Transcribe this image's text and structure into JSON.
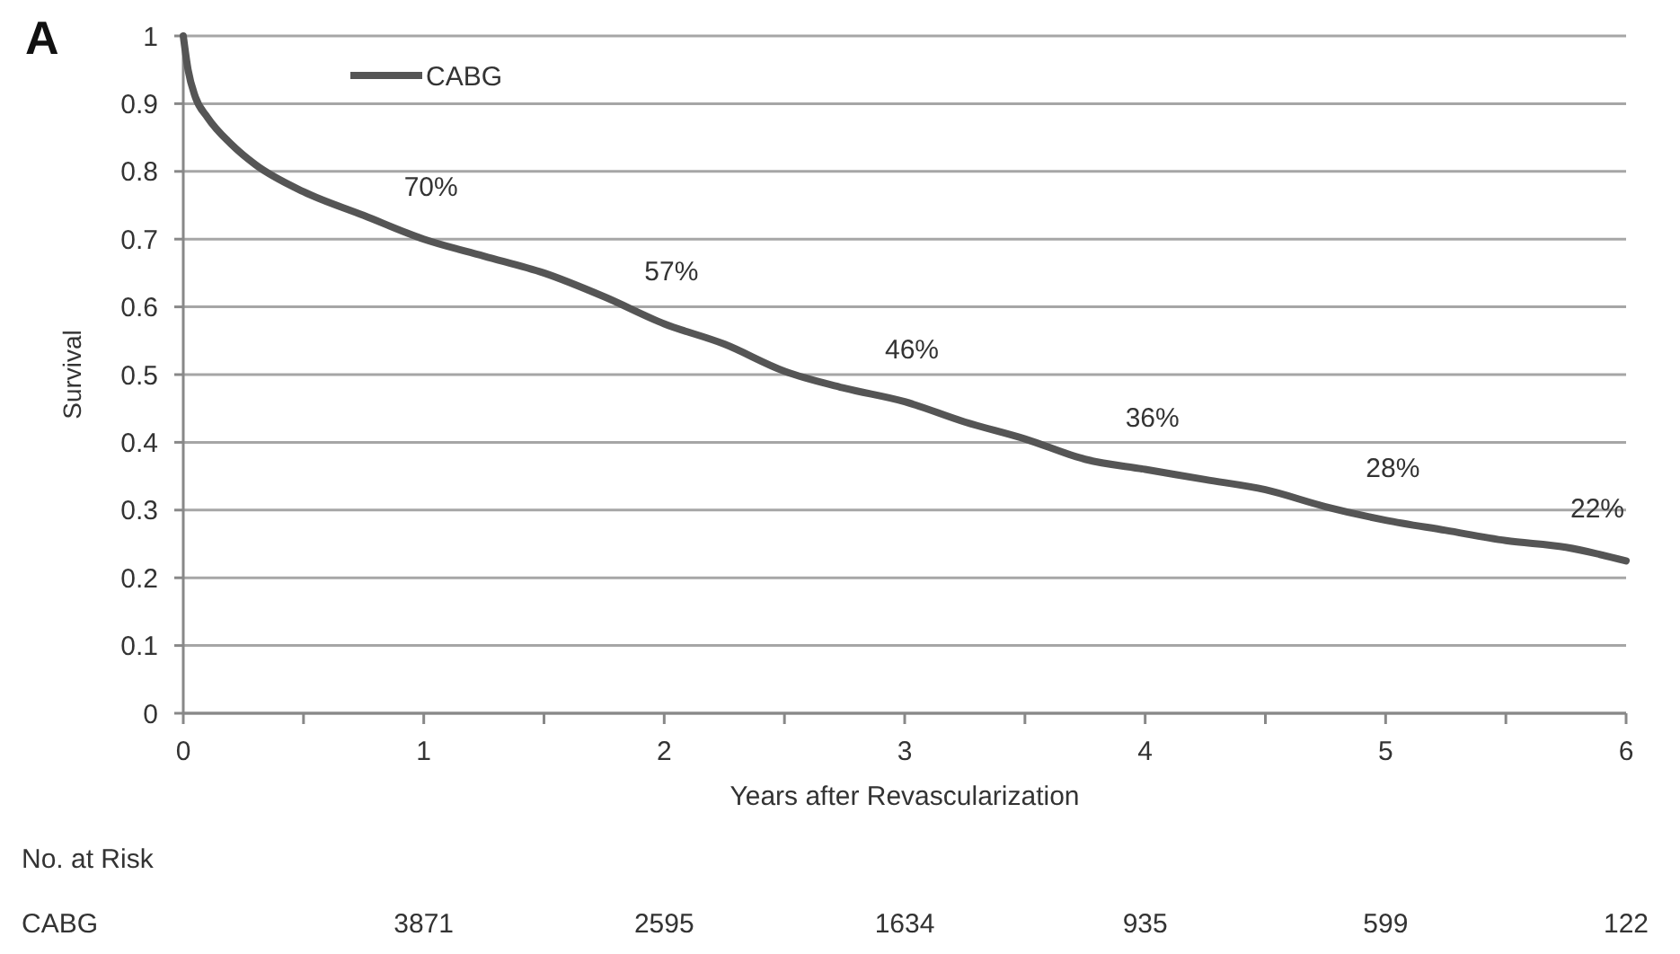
{
  "chart_data": {
    "type": "line",
    "xlabel": "Years after Revascularization",
    "ylabel": "Survival",
    "x": [
      0,
      0.02,
      0.05,
      0.1,
      0.2,
      0.3,
      0.5,
      0.75,
      1,
      1.25,
      1.5,
      1.75,
      2,
      2.25,
      2.5,
      2.75,
      3,
      3.25,
      3.5,
      3.75,
      4,
      4.25,
      4.5,
      4.75,
      5,
      5.25,
      5.5,
      5.75,
      6
    ],
    "series": [
      {
        "name": "CABG",
        "color": "#555555",
        "values": [
          1,
          0.95,
          0.91,
          0.88,
          0.84,
          0.81,
          0.77,
          0.735,
          0.7,
          0.675,
          0.65,
          0.615,
          0.575,
          0.545,
          0.505,
          0.48,
          0.46,
          0.43,
          0.405,
          0.375,
          0.36,
          0.345,
          0.33,
          0.305,
          0.285,
          0.27,
          0.255,
          0.245,
          0.225
        ]
      }
    ],
    "xlim": [
      0,
      6
    ],
    "xticks": [
      0,
      {
        "value": 0.5,
        "label": null
      },
      1,
      {
        "value": 1.5,
        "label": null
      },
      2,
      {
        "value": 2.5,
        "label": null
      },
      3,
      {
        "value": 3.5,
        "label": null
      },
      4,
      {
        "value": 4.5,
        "label": null
      },
      5,
      {
        "value": 5.5,
        "label": null
      },
      6
    ],
    "ylim": [
      0,
      1
    ],
    "yticks": [
      0,
      0.1,
      0.2,
      0.3,
      0.4,
      0.5,
      0.6,
      0.7,
      0.8,
      0.9,
      1
    ],
    "grid": "y",
    "legend": "top left",
    "marker": "none",
    "line_style": "solid",
    "annotations": [
      "A",
      {
        "text": "70%",
        "x": 1,
        "y": 0.7
      },
      {
        "text": "57%",
        "x": 2,
        "y": 0.575
      },
      {
        "text": "46%",
        "x": 3,
        "y": 0.46
      },
      {
        "text": "36%",
        "x": 4,
        "y": 0.36
      },
      {
        "text": "28%",
        "x": 5,
        "y": 0.285
      },
      {
        "text": "22%",
        "x": 6,
        "y": 0.225
      },
      "No. at Risk",
      "CABG",
      "3871",
      "2595",
      "1634",
      "935",
      "599",
      "122"
    ]
  }
}
